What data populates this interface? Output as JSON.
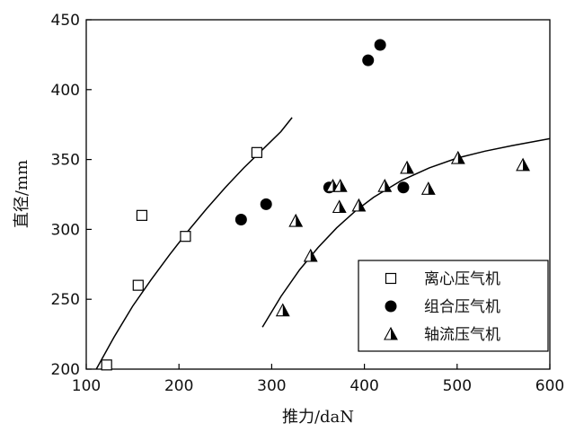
{
  "chart_data": {
    "type": "scatter",
    "xlabel": "推力/daN",
    "ylabel": "直径/mm",
    "xlim": [
      100,
      600
    ],
    "ylim": [
      200,
      450
    ],
    "x_ticks": [
      100,
      200,
      300,
      400,
      500,
      600
    ],
    "y_ticks": [
      200,
      250,
      300,
      350,
      400,
      450
    ],
    "grid": false,
    "legend_position": "bottom-right",
    "series": [
      {
        "name": "离心压气机",
        "marker": "open-square",
        "color": "#000000",
        "points": [
          [
            122,
            203
          ],
          [
            156,
            260
          ],
          [
            160,
            310
          ],
          [
            207,
            295
          ],
          [
            284,
            355
          ]
        ]
      },
      {
        "name": "组合压气机",
        "marker": "filled-circle",
        "color": "#000000",
        "points": [
          [
            267,
            307
          ],
          [
            294,
            318
          ],
          [
            362,
            330
          ],
          [
            404,
            421
          ],
          [
            417,
            432
          ],
          [
            442,
            330
          ]
        ]
      },
      {
        "name": "轴流压气机",
        "marker": "half-filled-triangle",
        "color": "#000000",
        "points": [
          [
            312,
            242
          ],
          [
            326,
            306
          ],
          [
            342,
            281
          ],
          [
            366,
            331
          ],
          [
            374,
            331
          ],
          [
            373,
            316
          ],
          [
            394,
            317
          ],
          [
            422,
            331
          ],
          [
            446,
            344
          ],
          [
            469,
            329
          ],
          [
            501,
            351
          ],
          [
            571,
            346
          ]
        ]
      }
    ],
    "trend_lines": [
      {
        "series": "离心压气机",
        "points": [
          [
            110,
            199
          ],
          [
            130,
            223
          ],
          [
            150,
            245
          ],
          [
            170,
            264
          ],
          [
            190,
            282
          ],
          [
            210,
            299
          ],
          [
            230,
            315
          ],
          [
            250,
            330
          ],
          [
            270,
            344
          ],
          [
            290,
            357
          ],
          [
            310,
            370
          ],
          [
            322,
            380
          ]
        ]
      },
      {
        "series": "轴流压气机",
        "points": [
          [
            290,
            230
          ],
          [
            310,
            252
          ],
          [
            330,
            271
          ],
          [
            350,
            287
          ],
          [
            370,
            301
          ],
          [
            390,
            313
          ],
          [
            410,
            323
          ],
          [
            440,
            335
          ],
          [
            470,
            344
          ],
          [
            500,
            351
          ],
          [
            530,
            356
          ],
          [
            560,
            360
          ],
          [
            600,
            365
          ]
        ]
      }
    ]
  }
}
